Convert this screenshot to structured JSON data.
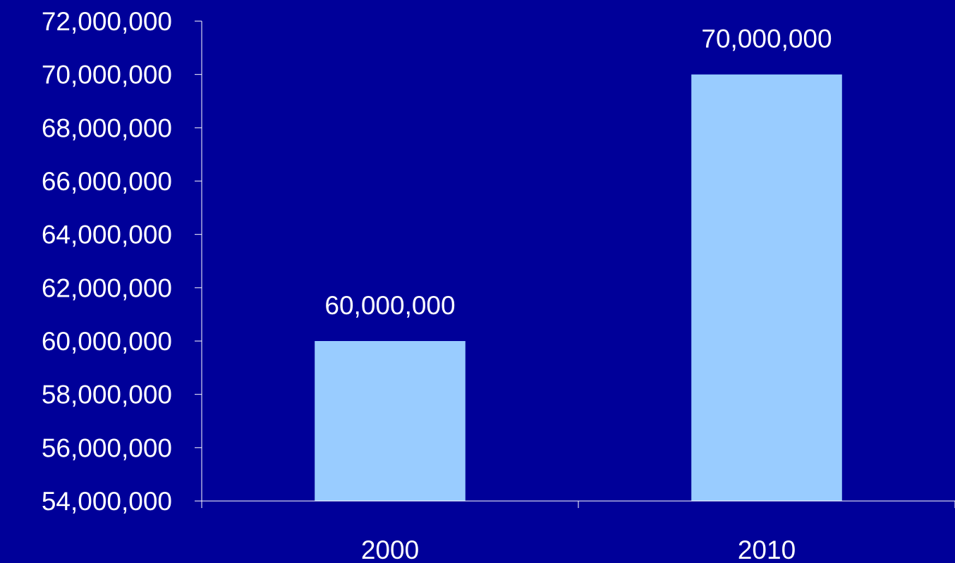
{
  "chart_data": {
    "type": "bar",
    "categories": [
      "2000",
      "2010"
    ],
    "values": [
      60000000,
      70000000
    ],
    "data_labels": [
      "60,000,000",
      "70,000,000"
    ],
    "ylim": [
      54000000,
      72000000
    ],
    "yticks": [
      54000000,
      56000000,
      58000000,
      60000000,
      62000000,
      64000000,
      66000000,
      68000000,
      70000000,
      72000000
    ],
    "ytick_labels": [
      "54,000,000",
      "56,000,000",
      "58,000,000",
      "60,000,000",
      "62,000,000",
      "64,000,000",
      "66,000,000",
      "68,000,000",
      "70,000,000",
      "72,000,000"
    ],
    "title": "",
    "xlabel": "",
    "ylabel": "",
    "grid": false,
    "legend": "none",
    "colors": {
      "background": "#000099",
      "bar": "#99ccff",
      "axis": "#ffffff",
      "text": "#ffffff"
    }
  }
}
